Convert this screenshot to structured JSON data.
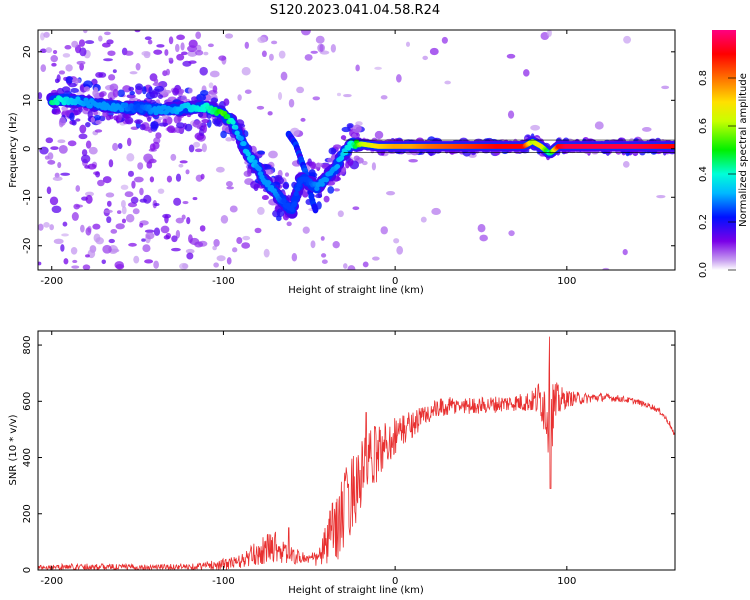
{
  "title": "S120.2023.041.04.58.R24",
  "chart_data": [
    {
      "type": "heatmap",
      "xlabel": "Height of straight line (km)",
      "ylabel": "Frequency (Hz)",
      "xlim": [
        -208,
        163
      ],
      "ylim": [
        -25,
        24.5
      ],
      "x_ticks": [
        -200,
        -100,
        0,
        100
      ],
      "x_tick_labels": [
        "-200",
        "-100",
        "0",
        "100"
      ],
      "y_ticks": [
        -20,
        -10,
        0,
        10,
        20
      ],
      "y_tick_labels": [
        "-20",
        "-10",
        "0",
        "10",
        "20"
      ],
      "colorbar": {
        "label": "Normalized spectral amplitude",
        "range": [
          0,
          1
        ],
        "ticks": [
          0.0,
          0.2,
          0.4,
          0.6,
          0.8
        ],
        "tick_labels": [
          "0.0",
          "0.2",
          "0.4",
          "0.6",
          "0.8"
        ],
        "colormap": "rainbow"
      },
      "ridge": {
        "x": [
          -200,
          -190,
          -180,
          -170,
          -160,
          -150,
          -140,
          -130,
          -120,
          -110,
          -105,
          -100,
          -95,
          -90,
          -85,
          -80,
          -75,
          -70,
          -65,
          -60,
          -55,
          -50,
          -45,
          -40,
          -35,
          -30,
          -25,
          -20,
          -10,
          0,
          10,
          20,
          40,
          60,
          75,
          80,
          85,
          90,
          95,
          100,
          120,
          140,
          163
        ],
        "freq": [
          10,
          10,
          9.5,
          9,
          8.5,
          8.5,
          8,
          8,
          8.5,
          8.5,
          8,
          7,
          5.5,
          2,
          -1.5,
          -4,
          -7,
          -9,
          -11,
          -13,
          -6,
          -7,
          -8,
          -6,
          -4,
          -1,
          1,
          1,
          0.5,
          0.5,
          0.5,
          0.5,
          0.5,
          0.5,
          0.5,
          1.5,
          0.5,
          -1,
          0.5,
          0.5,
          0.5,
          0.5,
          0.5
        ],
        "amplitude": [
          0.45,
          0.35,
          0.3,
          0.3,
          0.3,
          0.25,
          0.3,
          0.3,
          0.35,
          0.4,
          0.45,
          0.55,
          0.4,
          0.3,
          0.35,
          0.3,
          0.3,
          0.3,
          0.25,
          0.25,
          0.25,
          0.25,
          0.3,
          0.3,
          0.3,
          0.35,
          0.4,
          0.6,
          0.7,
          0.75,
          0.75,
          0.8,
          0.85,
          0.9,
          0.9,
          0.6,
          0.7,
          0.4,
          0.9,
          0.95,
          0.95,
          0.95,
          0.9
        ]
      },
      "branch": {
        "x": [
          -62,
          -58,
          -55,
          -52,
          -50,
          -48,
          -46
        ],
        "freq": [
          3,
          1,
          -2,
          -5,
          -8,
          -11,
          -13
        ]
      }
    },
    {
      "type": "line",
      "xlabel": "Height of straight line (km)",
      "ylabel": "SNR (10 * v/v)",
      "xlim": [
        -208,
        163
      ],
      "ylim": [
        0,
        850
      ],
      "x_ticks": [
        -200,
        -100,
        0,
        100
      ],
      "x_tick_labels": [
        "-200",
        "-100",
        "0",
        "100"
      ],
      "y_ticks": [
        0,
        200,
        400,
        600,
        800
      ],
      "y_tick_labels": [
        "0",
        "200",
        "400",
        "600",
        "800"
      ],
      "color": "#e83030",
      "envelope": {
        "x": [
          -208,
          -180,
          -150,
          -120,
          -100,
          -90,
          -80,
          -70,
          -65,
          -60,
          -55,
          -50,
          -45,
          -40,
          -35,
          -30,
          -25,
          -20,
          -15,
          -10,
          0,
          10,
          20,
          30,
          40,
          50,
          60,
          70,
          80,
          85,
          90,
          95,
          100,
          110,
          120,
          130,
          140,
          150,
          155,
          160,
          163
        ],
        "mean": [
          10,
          12,
          10,
          12,
          20,
          30,
          60,
          90,
          60,
          50,
          45,
          40,
          40,
          90,
          150,
          200,
          280,
          330,
          380,
          420,
          480,
          520,
          560,
          580,
          585,
          585,
          590,
          595,
          600,
          610,
          550,
          600,
          610,
          610,
          615,
          610,
          600,
          580,
          560,
          520,
          470
        ],
        "noise": [
          8,
          12,
          10,
          10,
          20,
          25,
          45,
          60,
          40,
          30,
          25,
          20,
          30,
          80,
          120,
          150,
          140,
          130,
          120,
          100,
          70,
          50,
          40,
          35,
          30,
          30,
          30,
          30,
          40,
          80,
          160,
          60,
          30,
          20,
          15,
          12,
          10,
          10,
          10,
          10,
          10
        ]
      },
      "peaks": [
        {
          "x": -62,
          "y": 150
        },
        {
          "x": -38,
          "y": 210
        },
        {
          "x": -17,
          "y": 560
        },
        {
          "x": 90,
          "y": 830
        },
        {
          "x": 90.5,
          "y": 290
        }
      ]
    }
  ]
}
